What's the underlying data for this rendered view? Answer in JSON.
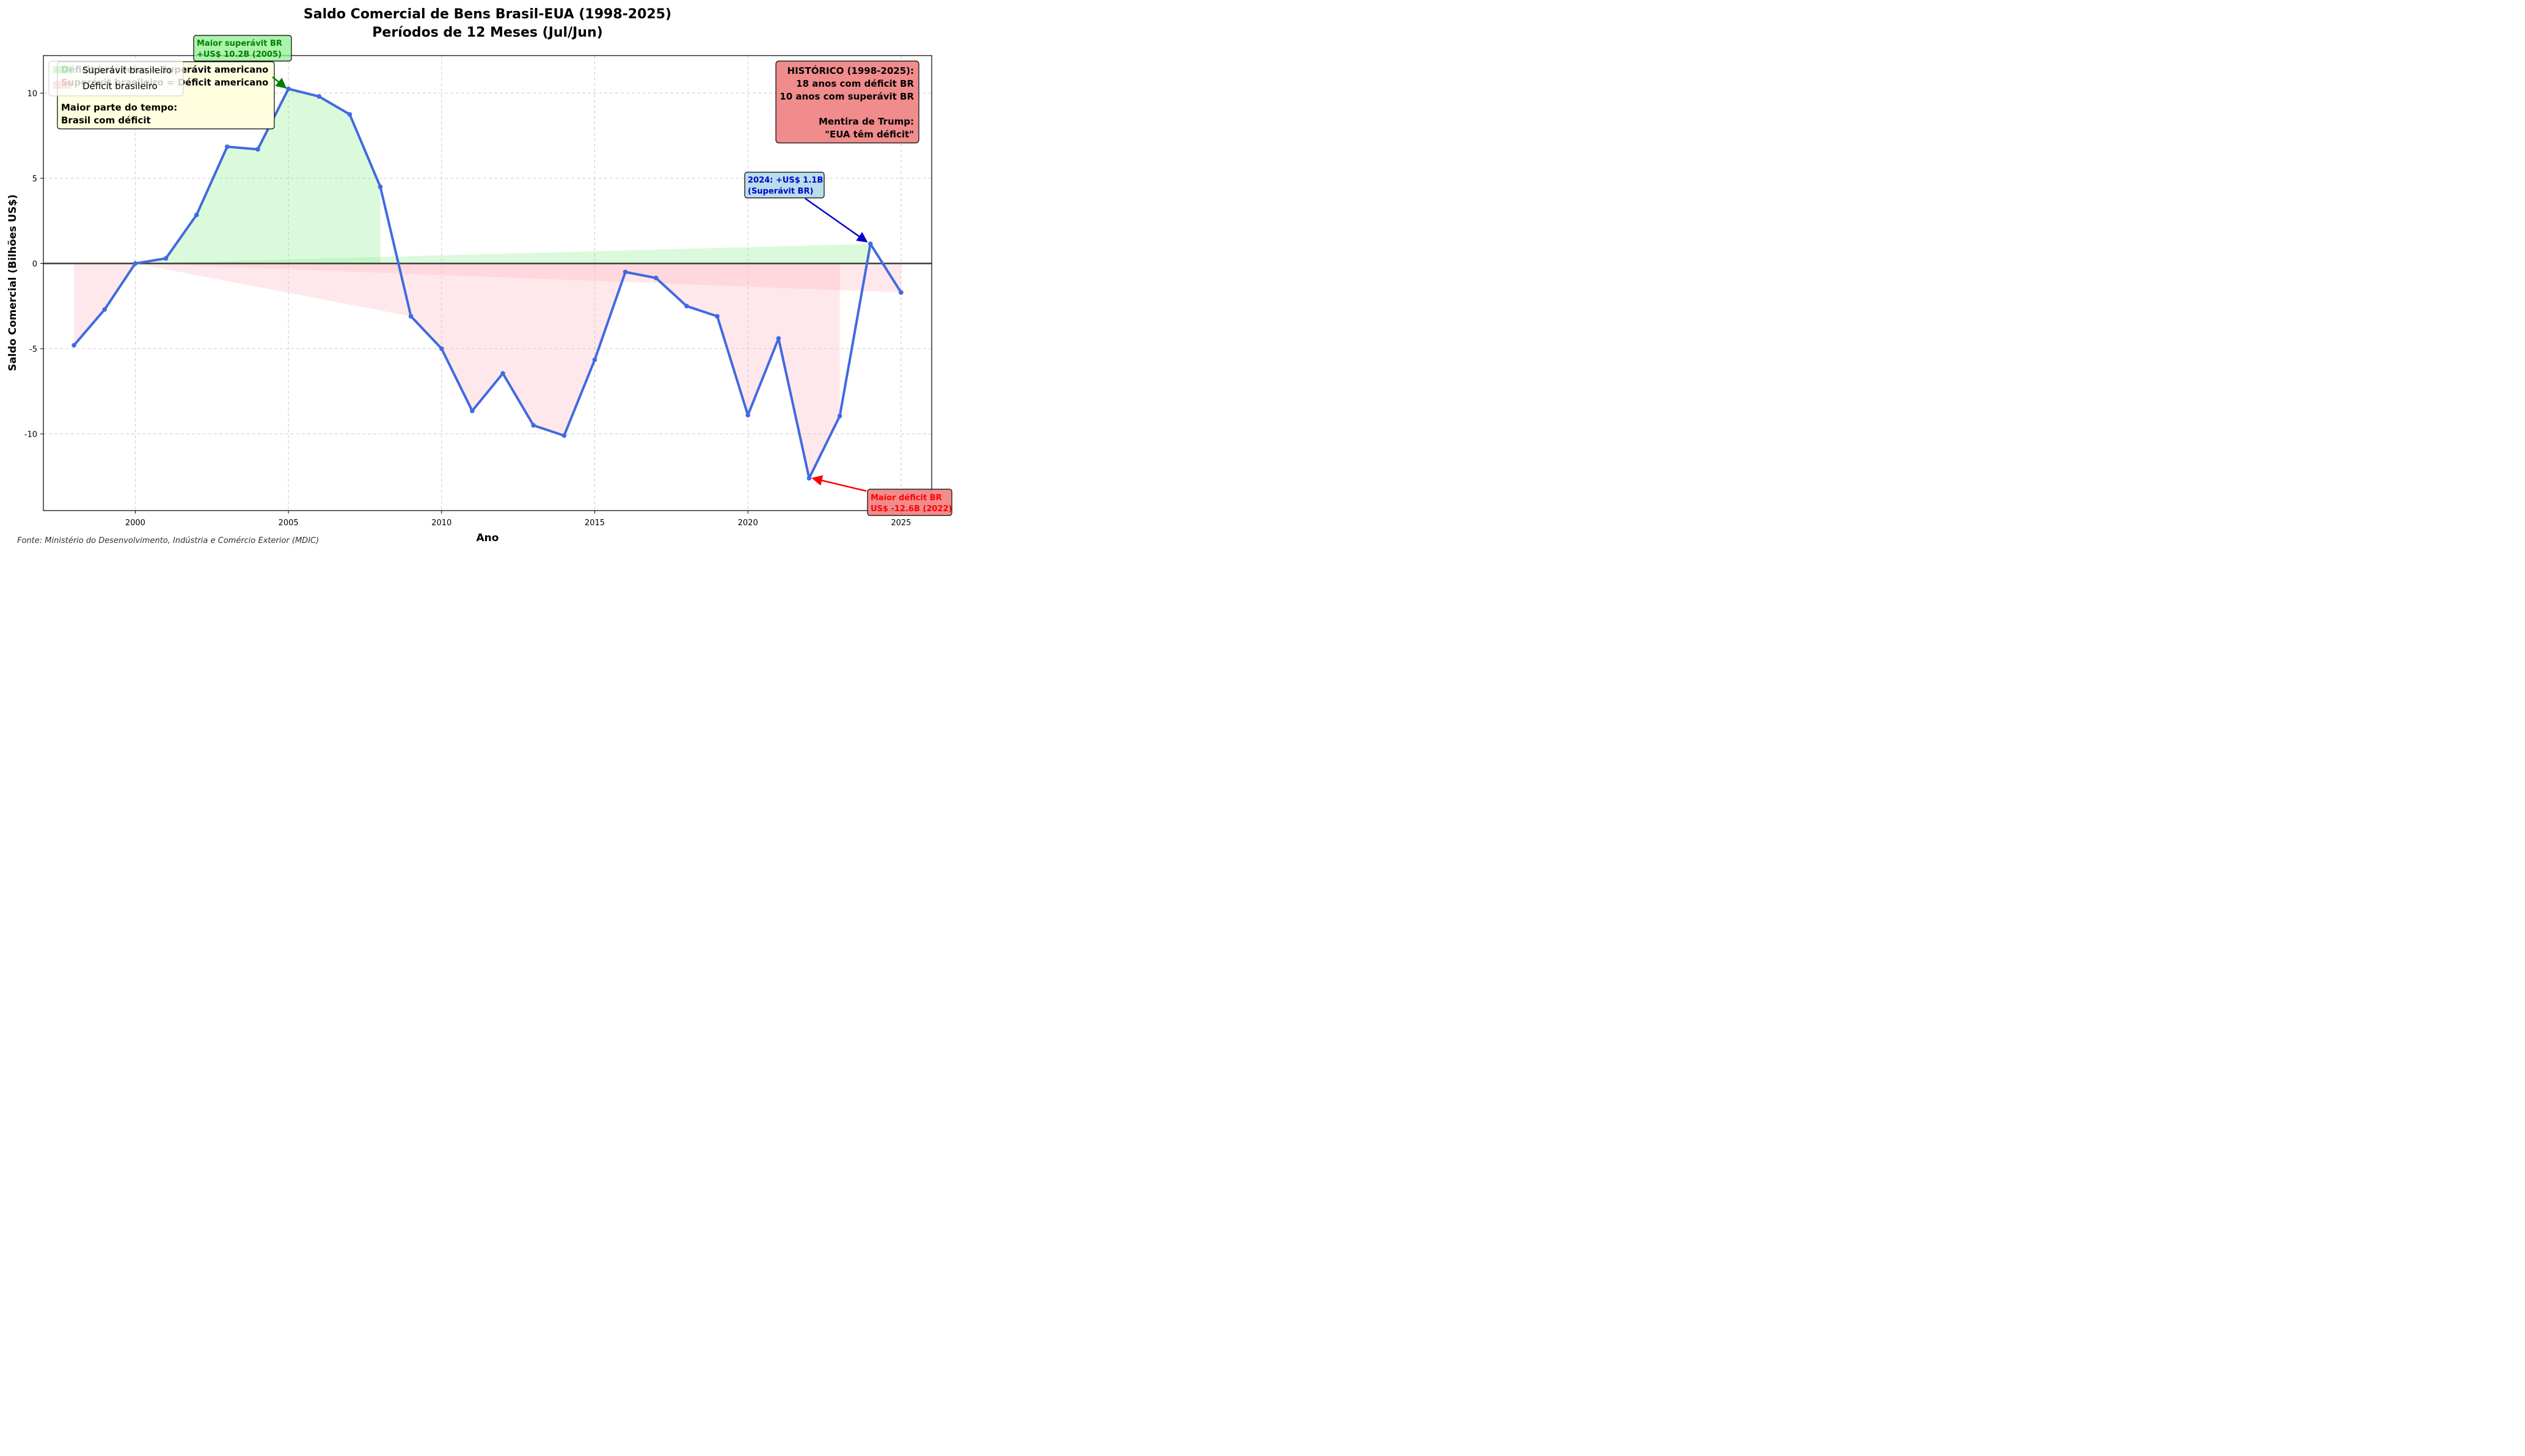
{
  "chart_data": {
    "type": "line",
    "title_line1": "Saldo Comercial de Bens Brasil-EUA (1998-2025)",
    "title_line2": "Períodos de 12 Meses (Jul/Jun)",
    "xlabel": "Ano",
    "ylabel": "Saldo Comercial (Bilhões US$)",
    "xlim": [
      1997,
      2026
    ],
    "ylim": [
      -14.5,
      12.2
    ],
    "x_ticks": [
      2000,
      2005,
      2010,
      2015,
      2020,
      2025
    ],
    "y_ticks": [
      -10,
      -5,
      0,
      5,
      10
    ],
    "y_tick_labels": [
      "-10",
      "-5",
      "0",
      "5",
      "10"
    ],
    "grid": true,
    "source": "Fonte: Ministério do Desenvolvimento, Indústria e Comércio Exterior (MDIC)",
    "x": [
      1998,
      1999,
      2000,
      2001,
      2002,
      2003,
      2004,
      2005,
      2006,
      2007,
      2008,
      2009,
      2010,
      2011,
      2012,
      2013,
      2014,
      2015,
      2016,
      2017,
      2018,
      2019,
      2020,
      2021,
      2022,
      2023,
      2024,
      2025
    ],
    "values": [
      -4.8,
      -2.7,
      0.0,
      0.3,
      2.85,
      6.85,
      6.7,
      10.25,
      9.8,
      8.75,
      4.5,
      -3.1,
      -5.0,
      -8.65,
      -6.45,
      -9.5,
      -10.1,
      -5.65,
      -0.5,
      -0.85,
      -2.5,
      -3.1,
      -8.9,
      -4.4,
      -12.6,
      -8.95,
      1.15,
      -1.7
    ],
    "colors": {
      "line": "#4169e1",
      "surplus_fill": "#90ee90",
      "deficit_fill": "#ffb6c1",
      "zero_line": "#3a3a3a"
    },
    "legend": {
      "position": "upper-left",
      "items": [
        {
          "label": "Superávit brasileiro",
          "color": "#90ee90"
        },
        {
          "label": "Déficit brasileiro",
          "color": "#ffb6c1"
        }
      ]
    },
    "info_box": {
      "line1": "Déficit brasileiro = Superávit americano",
      "line2": "Superávit brasileiro = Déficit americano",
      "line3": "Maior parte do tempo:",
      "line4": "Brasil com déficit"
    },
    "history_box": {
      "line1": "HISTÓRICO (1998-2025):",
      "line2": "18 anos com déficit BR",
      "line3": "10 anos com superávit BR",
      "line4": "Mentira de Trump:",
      "line5": "\"EUA têm déficit\""
    },
    "annotations": [
      {
        "id": "max-surplus",
        "line1": "Maior superávit BR",
        "line2": "+US$ 10.2B (2005)",
        "x": 2005,
        "y": 10.25,
        "color": "#008000"
      },
      {
        "id": "y2024",
        "line1": "2024: +US$ 1.1B",
        "line2": "(Superávit BR)",
        "x": 2024,
        "y": 1.15,
        "color": "#0000cc"
      },
      {
        "id": "max-deficit",
        "line1": "Maior déficit BR",
        "line2": "US$ -12.6B (2022)",
        "x": 2022,
        "y": -12.6,
        "color": "#ff0000"
      }
    ]
  }
}
